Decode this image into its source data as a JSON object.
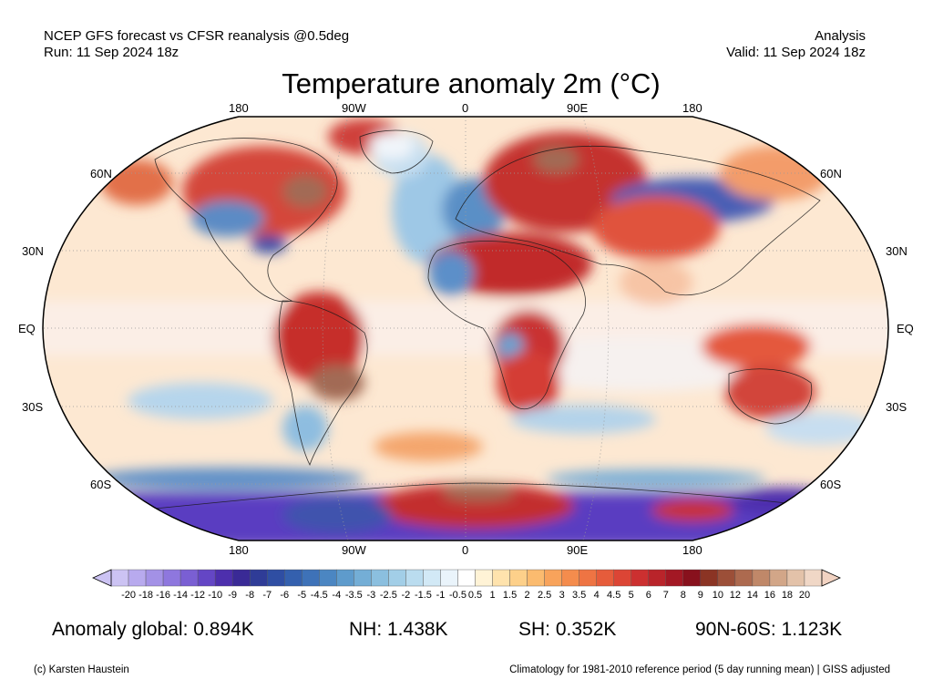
{
  "header": {
    "left_line1": "NCEP GFS forecast vs CFSR reanalysis @0.5deg",
    "left_line2": "Run: 11 Sep 2024 18z",
    "right_line1": "Analysis",
    "right_line2": "Valid: 11 Sep 2024 18z"
  },
  "title": "Temperature anomaly 2m (°C)",
  "map": {
    "lon_labels_top": [
      "180",
      "90W",
      "0",
      "90E",
      "180"
    ],
    "lon_labels_bottom": [
      "180",
      "90W",
      "0",
      "90E",
      "180"
    ],
    "lat_labels_left": [
      "60N",
      "30N",
      "EQ",
      "30S",
      "60S"
    ],
    "lat_labels_right": [
      "60N",
      "30N",
      "EQ",
      "30S",
      "60S"
    ]
  },
  "colorbar": {
    "labels": [
      "-20",
      "-18",
      "-16",
      "-14",
      "-12",
      "-10",
      "-9",
      "-8",
      "-7",
      "-6",
      "-5",
      "-4.5",
      "-4",
      "-3.5",
      "-3",
      "-2.5",
      "-2",
      "-1.5",
      "-1",
      "-0.5",
      "0.5",
      "1",
      "1.5",
      "2",
      "2.5",
      "3",
      "3.5",
      "4",
      "4.5",
      "5",
      "6",
      "7",
      "8",
      "9",
      "10",
      "12",
      "14",
      "16",
      "18",
      "20"
    ],
    "colors": [
      "#ccc3f3",
      "#b8aaee",
      "#a391e6",
      "#8e77de",
      "#7a5fd3",
      "#6446c5",
      "#4d2fad",
      "#3a2a96",
      "#2f3c97",
      "#2f4ea3",
      "#3460ae",
      "#3e72b8",
      "#4b86c2",
      "#5e9bcc",
      "#74aed6",
      "#8bbfdf",
      "#a2cee7",
      "#badcef",
      "#d2e9f6",
      "#eaf4fb",
      "#ffffff",
      "#fff3d6",
      "#ffe3ad",
      "#fdd08a",
      "#fbbb6f",
      "#f8a35b",
      "#f48c4d",
      "#ee7443",
      "#e65c3b",
      "#dc4535",
      "#cc3030",
      "#b9242a",
      "#a31824",
      "#88111d",
      "#8b3424",
      "#9c4f38",
      "#ad6a4f",
      "#c08869",
      "#d2a688",
      "#e3c2a9",
      "#f0d7c6"
    ],
    "under_color": "#ccc3f3",
    "over_color": "#f2d3c2"
  },
  "stats": {
    "global": "Anomaly global: 0.894K",
    "nh": "NH: 1.438K",
    "sh": "SH: 0.352K",
    "arctic": "90N-60S: 1.123K"
  },
  "footer": {
    "left": "(c) Karsten Haustein",
    "right": "Climatology for 1981-2010 reference period (5 day running mean) | GISS adjusted"
  }
}
